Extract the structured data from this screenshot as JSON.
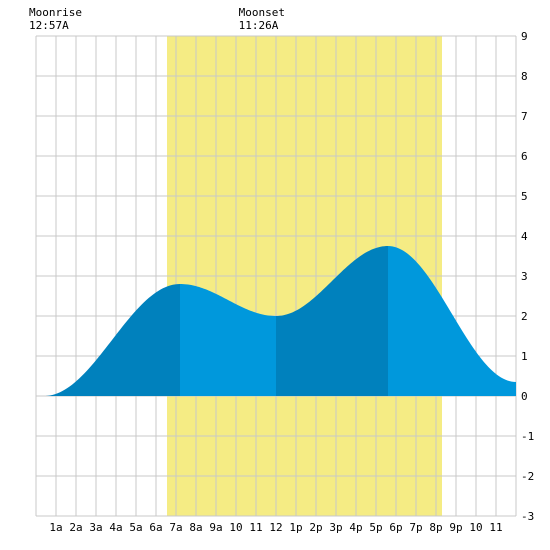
{
  "chart_data": {
    "type": "area",
    "title": "",
    "xlabel": "",
    "ylabel": "",
    "xlim": [
      0,
      24
    ],
    "ylim": [
      -3,
      9
    ],
    "grid": true,
    "x_tick_labels": [
      "1a",
      "2a",
      "3a",
      "4a",
      "5a",
      "6a",
      "7a",
      "8a",
      "9a",
      "10",
      "11",
      "12",
      "1p",
      "2p",
      "3p",
      "4p",
      "5p",
      "6p",
      "7p",
      "8p",
      "9p",
      "10",
      "11"
    ],
    "y_tick_labels": [
      "-3",
      "-2",
      "-1",
      "0",
      "1",
      "2",
      "3",
      "4",
      "5",
      "6",
      "7",
      "8",
      "9"
    ],
    "daylight_band": {
      "start_hour": 6.55,
      "end_hour": 20.3,
      "color": "#f5ec84"
    },
    "annotations": [
      {
        "label": "Moonrise",
        "time": "12:57A",
        "hour": 0.95
      },
      {
        "label": "Moonset",
        "time": "11:26A",
        "hour": 11.43
      }
    ],
    "tide_extrema": [
      {
        "hour": 0.4,
        "height": 0.0
      },
      {
        "hour": 7.2,
        "height": 2.8
      },
      {
        "hour": 12.0,
        "height": 2.0
      },
      {
        "hour": 17.6,
        "height": 3.75
      },
      {
        "hour": 24.0,
        "height": 0.35
      }
    ],
    "shade_boundaries": [
      0,
      7.2,
      12.0,
      17.6,
      24
    ],
    "colors": {
      "dark_fill": "#0081bd",
      "light_fill": "#0098dc",
      "grid": "#c8c8c8",
      "background": "#ffffff"
    }
  }
}
